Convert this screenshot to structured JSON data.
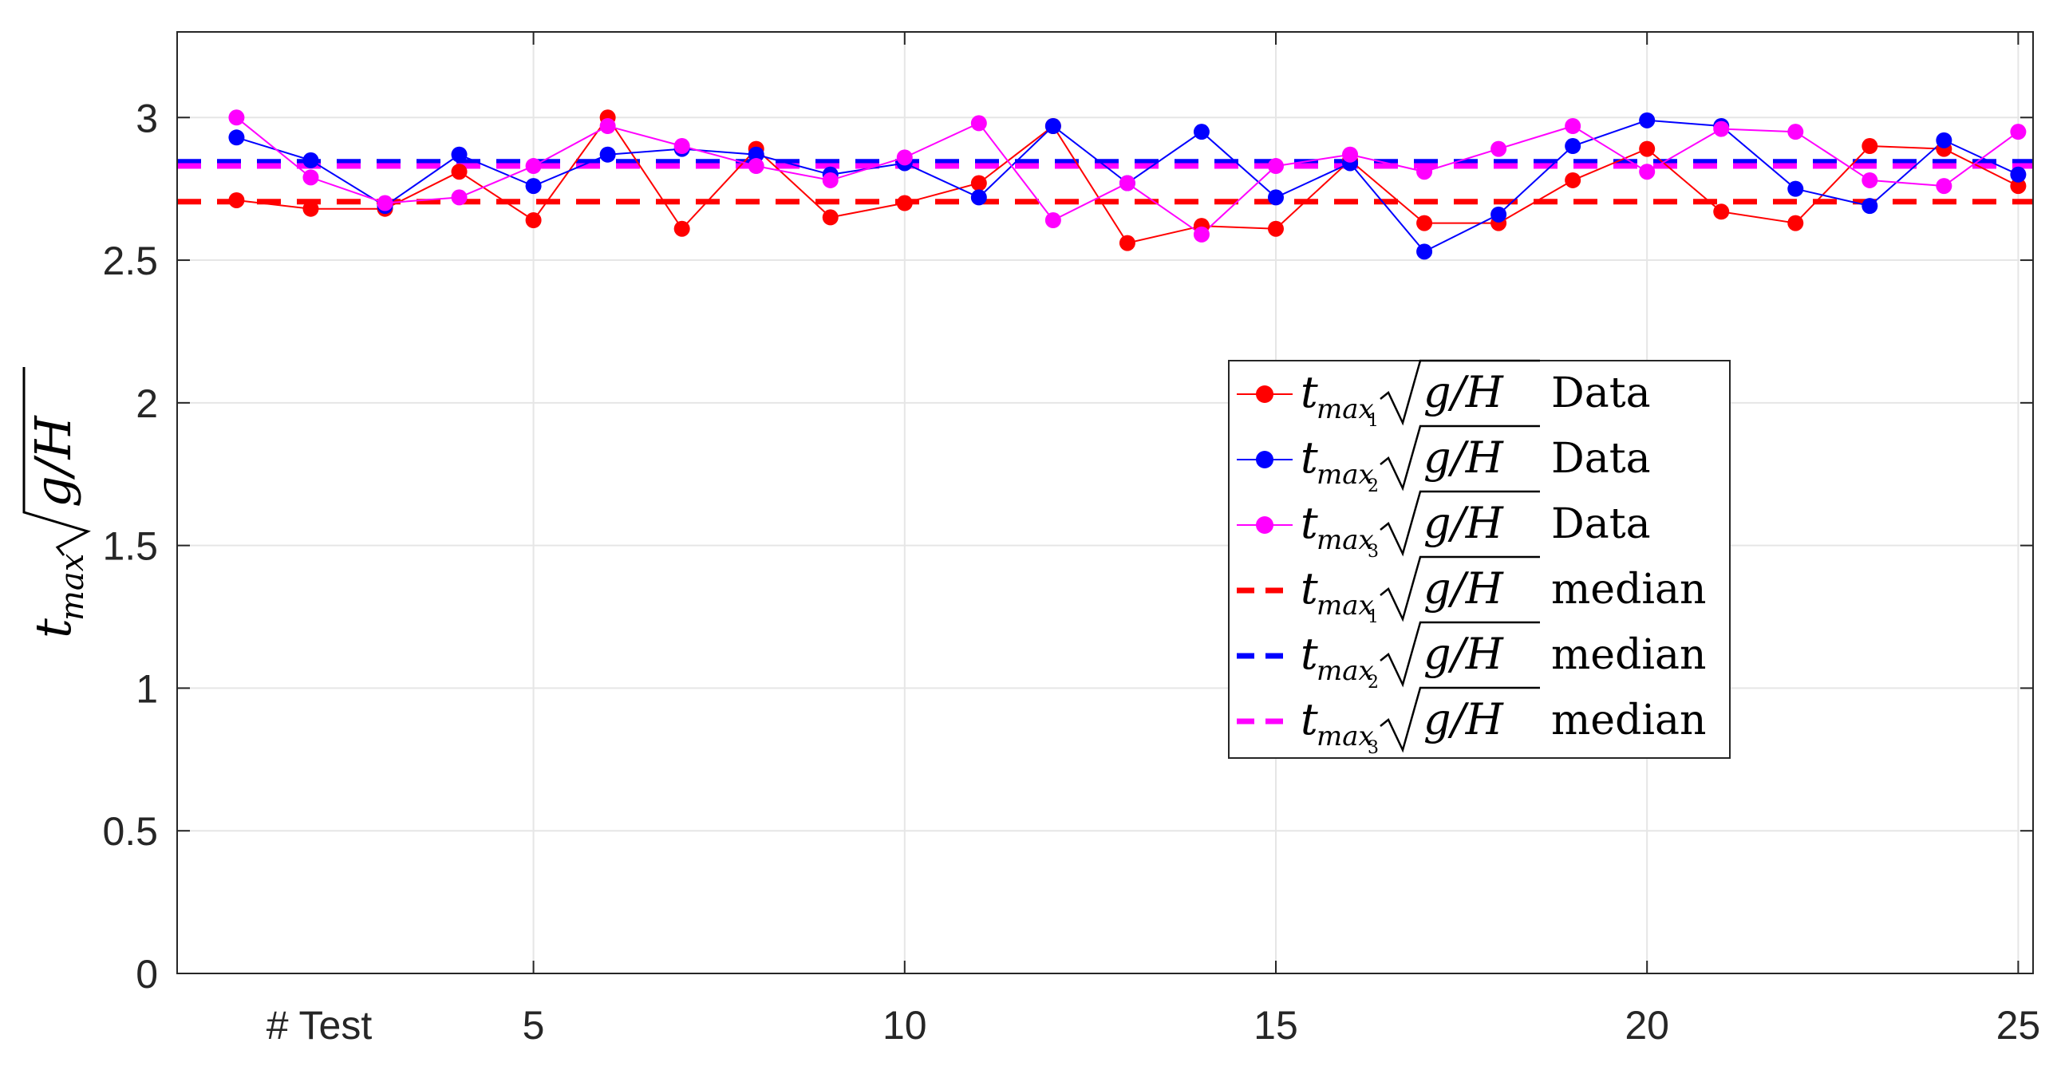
{
  "chart_data": {
    "type": "line",
    "xlabel": "# Test",
    "ylabel": {
      "base": "t",
      "sub": "max",
      "root": "g/H"
    },
    "xlim": [
      0.2,
      25.2
    ],
    "ylim": [
      0,
      3.3
    ],
    "xticks": [
      5,
      10,
      15,
      20,
      25
    ],
    "yticks": [
      0,
      0.5,
      1,
      1.5,
      2,
      2.5,
      3
    ],
    "ytick_labels": [
      "0",
      "0.5",
      "1",
      "1.5",
      "2",
      "2.5",
      "3"
    ],
    "grid": true,
    "legend_position": "center-right",
    "x": [
      1,
      2,
      3,
      4,
      5,
      6,
      7,
      8,
      9,
      10,
      11,
      12,
      13,
      14,
      15,
      16,
      17,
      18,
      19,
      20,
      21,
      22,
      23,
      24,
      25
    ],
    "series": [
      {
        "name": "t_max1 √(g/H) Data",
        "kind": "data",
        "color": "#ff0000",
        "values": [
          2.71,
          2.68,
          2.68,
          2.81,
          2.64,
          3.0,
          2.61,
          2.89,
          2.65,
          2.7,
          2.77,
          2.97,
          2.56,
          2.62,
          2.61,
          2.85,
          2.63,
          2.63,
          2.78,
          2.89,
          2.67,
          2.63,
          2.9,
          2.89,
          2.76
        ]
      },
      {
        "name": "t_max2 √(g/H) Data",
        "kind": "data",
        "color": "#0000ff",
        "values": [
          2.93,
          2.85,
          2.69,
          2.87,
          2.76,
          2.87,
          2.89,
          2.87,
          2.8,
          2.84,
          2.72,
          2.97,
          2.77,
          2.95,
          2.72,
          2.84,
          2.53,
          2.66,
          2.9,
          2.99,
          2.97,
          2.75,
          2.69,
          2.92,
          2.8
        ]
      },
      {
        "name": "t_max3 √(g/H) Data",
        "kind": "data",
        "color": "#ff00ff",
        "values": [
          3.0,
          2.79,
          2.7,
          2.72,
          2.83,
          2.97,
          2.9,
          2.83,
          2.78,
          2.86,
          2.98,
          2.64,
          2.77,
          2.59,
          2.83,
          2.87,
          2.81,
          2.89,
          2.97,
          2.81,
          2.96,
          2.95,
          2.78,
          2.76,
          2.95
        ]
      },
      {
        "name": "t_max1 √(g/H) median",
        "kind": "median",
        "color": "#ff0000",
        "value": 2.705
      },
      {
        "name": "t_max2 √(g/H) median",
        "kind": "median",
        "color": "#0000ff",
        "value": 2.845
      },
      {
        "name": "t_max3 √(g/H) median",
        "kind": "median",
        "color": "#ff00ff",
        "value": 2.83
      }
    ],
    "legend": [
      {
        "base": "t",
        "sub": "max",
        "idx": "1",
        "root": "g/H",
        "word": "Data",
        "color": "#ff0000",
        "style": "marker"
      },
      {
        "base": "t",
        "sub": "max",
        "idx": "2",
        "root": "g/H",
        "word": "Data",
        "color": "#0000ff",
        "style": "marker"
      },
      {
        "base": "t",
        "sub": "max",
        "idx": "3",
        "root": "g/H",
        "word": "Data",
        "color": "#ff00ff",
        "style": "marker"
      },
      {
        "base": "t",
        "sub": "max",
        "idx": "1",
        "root": "g/H",
        "word": "median",
        "color": "#ff0000",
        "style": "dash"
      },
      {
        "base": "t",
        "sub": "max",
        "idx": "2",
        "root": "g/H",
        "word": "median",
        "color": "#0000ff",
        "style": "dash"
      },
      {
        "base": "t",
        "sub": "max",
        "idx": "3",
        "root": "g/H",
        "word": "median",
        "color": "#ff00ff",
        "style": "dash"
      }
    ]
  }
}
